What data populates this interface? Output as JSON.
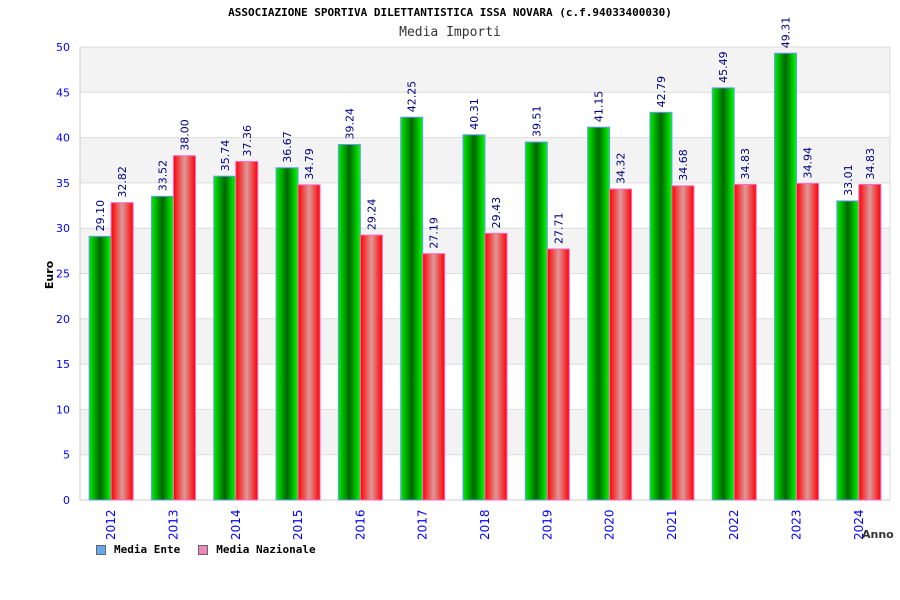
{
  "chart_data": {
    "type": "bar",
    "title": "ASSOCIAZIONE SPORTIVA DILETTANTISTICA ISSA NOVARA (c.f.94033400030)",
    "subtitle": "Media Importi",
    "xlabel": "Anno",
    "ylabel": "Euro",
    "ylim": [
      0,
      50
    ],
    "yticks": [
      "0",
      "5",
      "10",
      "15",
      "20",
      "25",
      "30",
      "35",
      "40",
      "45",
      "50"
    ],
    "categories": [
      "2012",
      "2013",
      "2014",
      "2015",
      "2016",
      "2017",
      "2018",
      "2019",
      "2020",
      "2021",
      "2022",
      "2023",
      "2024"
    ],
    "series": [
      {
        "name": "Media Ente",
        "color": "#66aaee",
        "values": [
          29.1,
          33.52,
          35.74,
          36.67,
          39.24,
          42.25,
          40.31,
          39.51,
          41.15,
          42.79,
          45.49,
          49.31,
          33.01
        ],
        "labels": [
          "29.10",
          "33.52",
          "35.74",
          "36.67",
          "39.24",
          "42.25",
          "40.31",
          "39.51",
          "41.15",
          "42.79",
          "45.49",
          "49.31",
          "33.01"
        ]
      },
      {
        "name": "Media Nazionale",
        "color": "#ee88bb",
        "values": [
          32.82,
          38.0,
          37.36,
          34.79,
          29.24,
          27.19,
          29.43,
          27.71,
          34.32,
          34.68,
          34.83,
          34.94,
          34.83
        ],
        "labels": [
          "32.82",
          "38.00",
          "37.36",
          "34.79",
          "29.24",
          "27.19",
          "29.43",
          "27.71",
          "34.32",
          "34.68",
          "34.83",
          "34.94",
          "34.83"
        ]
      }
    ],
    "grid": true,
    "legend_position": "bottom-left"
  }
}
